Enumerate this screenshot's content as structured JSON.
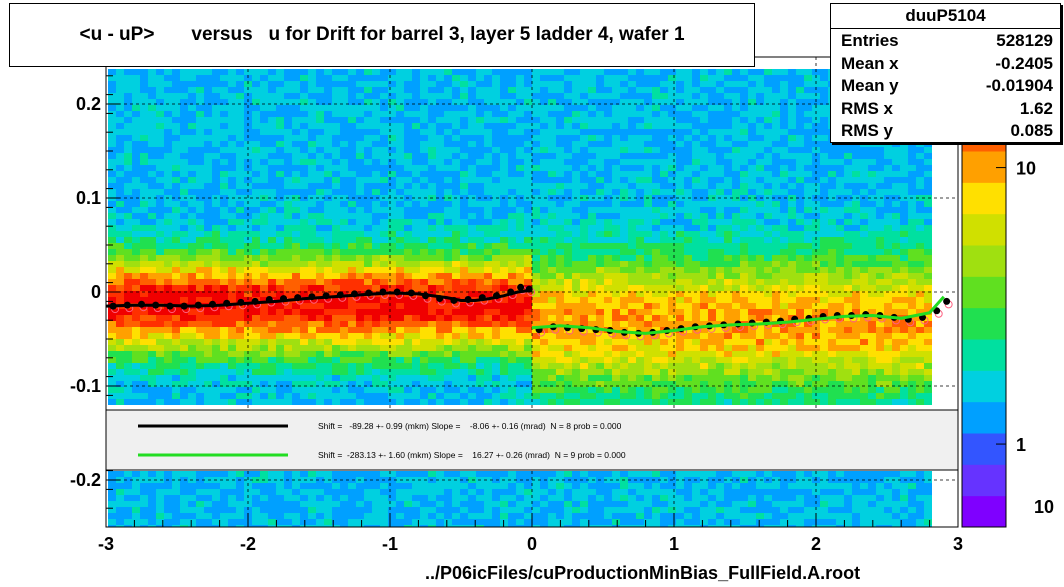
{
  "title": "<u - uP>       versus   u for Drift for barrel 3, layer 5 ladder 4, wafer 1",
  "footer": "../P06icFiles/cuProductionMinBias_FullField.A.root",
  "stats": {
    "name": "duuP5104",
    "rows": [
      {
        "label": "Entries",
        "value": "528129"
      },
      {
        "label": "Mean x",
        "value": "-0.2405"
      },
      {
        "label": "Mean y",
        "value": "-0.01904"
      },
      {
        "label": "RMS x",
        "value": "1.62"
      },
      {
        "label": "RMS y",
        "value": "0.085"
      }
    ]
  },
  "chart_data": {
    "type": "heatmap",
    "xlim": [
      -3,
      3
    ],
    "ylim": [
      -0.25,
      0.25
    ],
    "x_ticks": [
      -3,
      -2,
      -1,
      0,
      1,
      2,
      3
    ],
    "x_tick_labels": [
      "-3",
      "-2",
      "-1",
      "0",
      "1",
      "2",
      "3"
    ],
    "y_ticks": [
      -0.2,
      -0.1,
      0,
      0.1,
      0.2
    ],
    "y_tick_labels": [
      "-0.2",
      "-0.1",
      "0",
      "0.1",
      "0.2"
    ],
    "grid": true,
    "color_scale": {
      "log": true,
      "ticks": [
        1,
        10
      ],
      "tick_labels": [
        "1",
        "10"
      ],
      "bottom_label": "10",
      "colors": [
        "#7f00ff",
        "#6633ff",
        "#3355ff",
        "#00a0ff",
        "#00d0e0",
        "#00e0a0",
        "#20e050",
        "#60e020",
        "#a0e010",
        "#d0e000",
        "#ffe000",
        "#ffa000",
        "#ff6000",
        "#ff3000",
        "#f00000"
      ]
    },
    "black_profile": {
      "x": [
        -2.95,
        -2.85,
        -2.75,
        -2.65,
        -2.55,
        -2.45,
        -2.35,
        -2.25,
        -2.15,
        -2.05,
        -1.95,
        -1.85,
        -1.75,
        -1.65,
        -1.55,
        -1.45,
        -1.35,
        -1.25,
        -1.15,
        -1.05,
        -0.95,
        -0.85,
        -0.75,
        -0.65,
        -0.55,
        -0.45,
        -0.35,
        -0.25,
        -0.15,
        -0.08,
        -0.02,
        0.05,
        0.15,
        0.25,
        0.35,
        0.45,
        0.55,
        0.65,
        0.75,
        0.85,
        0.95,
        1.05,
        1.15,
        1.25,
        1.35,
        1.45,
        1.55,
        1.65,
        1.75,
        1.85,
        1.95,
        2.05,
        2.15,
        2.25,
        2.35,
        2.45,
        2.55,
        2.65,
        2.75,
        2.85,
        2.92
      ],
      "y": [
        -0.015,
        -0.014,
        -0.013,
        -0.014,
        -0.015,
        -0.015,
        -0.014,
        -0.013,
        -0.012,
        -0.011,
        -0.01,
        -0.008,
        -0.007,
        -0.006,
        -0.005,
        -0.004,
        -0.003,
        -0.002,
        -0.001,
        0.0,
        0.0,
        -0.001,
        -0.004,
        -0.007,
        -0.009,
        -0.008,
        -0.006,
        -0.004,
        0.0,
        0.005,
        0.003,
        -0.04,
        -0.037,
        -0.038,
        -0.039,
        -0.04,
        -0.041,
        -0.043,
        -0.044,
        -0.043,
        -0.041,
        -0.039,
        -0.037,
        -0.036,
        -0.035,
        -0.034,
        -0.033,
        -0.032,
        -0.031,
        -0.029,
        -0.028,
        -0.026,
        -0.025,
        -0.025,
        -0.024,
        -0.025,
        -0.027,
        -0.029,
        -0.027,
        -0.02,
        -0.01
      ]
    },
    "series": [
      {
        "name": "Shift =   -89.28 +- 0.99 (mkm) Slope =    -8.06 +- 0.16 (mrad)  N = 8 prob = 0.000",
        "color": "#000000",
        "x": [
          -3.0,
          -2.8,
          -2.6,
          -2.4,
          -2.2,
          -2.0,
          -1.8,
          -1.6,
          -1.4,
          -1.2,
          -1.0,
          -0.8,
          -0.6,
          -0.5,
          -0.4,
          -0.3,
          -0.2,
          -0.1,
          0.0
        ],
        "y": [
          -0.015,
          -0.014,
          -0.014,
          -0.015,
          -0.014,
          -0.012,
          -0.01,
          -0.007,
          -0.005,
          -0.003,
          -0.001,
          -0.002,
          -0.006,
          -0.009,
          -0.009,
          -0.007,
          -0.004,
          0.0,
          0.002
        ]
      },
      {
        "name": "Shift =  -283.13 +- 1.60 (mkm) Slope =    16.27 +- 0.26 (mrad)  N = 9 prob = 0.000",
        "color": "#22dd22",
        "x": [
          0.0,
          0.2,
          0.4,
          0.6,
          0.8,
          1.0,
          1.2,
          1.4,
          1.6,
          1.8,
          2.0,
          2.2,
          2.4,
          2.6,
          2.8,
          2.9
        ],
        "y": [
          -0.038,
          -0.036,
          -0.038,
          -0.042,
          -0.044,
          -0.041,
          -0.037,
          -0.035,
          -0.034,
          -0.032,
          -0.029,
          -0.026,
          -0.025,
          -0.028,
          -0.022,
          -0.005
        ]
      }
    ]
  }
}
